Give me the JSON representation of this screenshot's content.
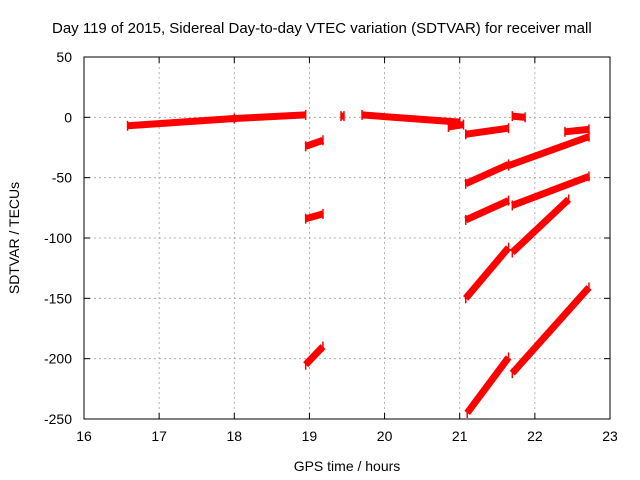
{
  "chart_data": {
    "type": "scatter",
    "title": "Day 119 of 2015, Sidereal Day-to-day VTEC variation (SDTVAR) for receiver mall",
    "xlabel": "GPS time / hours",
    "ylabel": "SDTVAR / TECUs",
    "xlim": [
      16,
      23
    ],
    "ylim": [
      -250,
      50
    ],
    "xticks": [
      "16",
      "17",
      "18",
      "19",
      "20",
      "21",
      "22",
      "23"
    ],
    "yticks": [
      "50",
      "0",
      "-50",
      "-100",
      "-150",
      "-200",
      "-250"
    ],
    "grid": true,
    "color": "#ff0000",
    "series": [
      {
        "x": [
          16.58,
          18.0
        ],
        "y": [
          -7,
          -1
        ]
      },
      {
        "x": [
          18.0,
          18.95
        ],
        "y": [
          -1,
          2
        ]
      },
      {
        "x": [
          18.95,
          19.18
        ],
        "y": [
          -24,
          -19
        ]
      },
      {
        "x": [
          18.95,
          19.18
        ],
        "y": [
          -84,
          -80
        ]
      },
      {
        "x": [
          18.95,
          19.18
        ],
        "y": [
          -205,
          -190
        ]
      },
      {
        "x": [
          19.42,
          19.46
        ],
        "y": [
          1,
          1
        ]
      },
      {
        "x": [
          19.7,
          21.0
        ],
        "y": [
          2,
          -4
        ]
      },
      {
        "x": [
          20.85,
          21.05
        ],
        "y": [
          -8,
          -6
        ]
      },
      {
        "x": [
          21.08,
          21.65
        ],
        "y": [
          -14,
          -9
        ]
      },
      {
        "x": [
          21.7,
          21.87
        ],
        "y": [
          1,
          0
        ]
      },
      {
        "x": [
          22.4,
          22.72
        ],
        "y": [
          -12,
          -10
        ]
      },
      {
        "x": [
          21.08,
          21.65
        ],
        "y": [
          -55,
          -39
        ]
      },
      {
        "x": [
          21.65,
          22.72
        ],
        "y": [
          -40,
          -16
        ]
      },
      {
        "x": [
          21.08,
          21.65
        ],
        "y": [
          -85,
          -69
        ]
      },
      {
        "x": [
          21.7,
          22.72
        ],
        "y": [
          -73,
          -49
        ]
      },
      {
        "x": [
          21.08,
          21.65
        ],
        "y": [
          -150,
          -108
        ]
      },
      {
        "x": [
          21.7,
          22.45
        ],
        "y": [
          -112,
          -68
        ]
      },
      {
        "x": [
          21.1,
          21.65
        ],
        "y": [
          -245,
          -199
        ]
      },
      {
        "x": [
          21.7,
          22.72
        ],
        "y": [
          -212,
          -141
        ]
      }
    ]
  }
}
